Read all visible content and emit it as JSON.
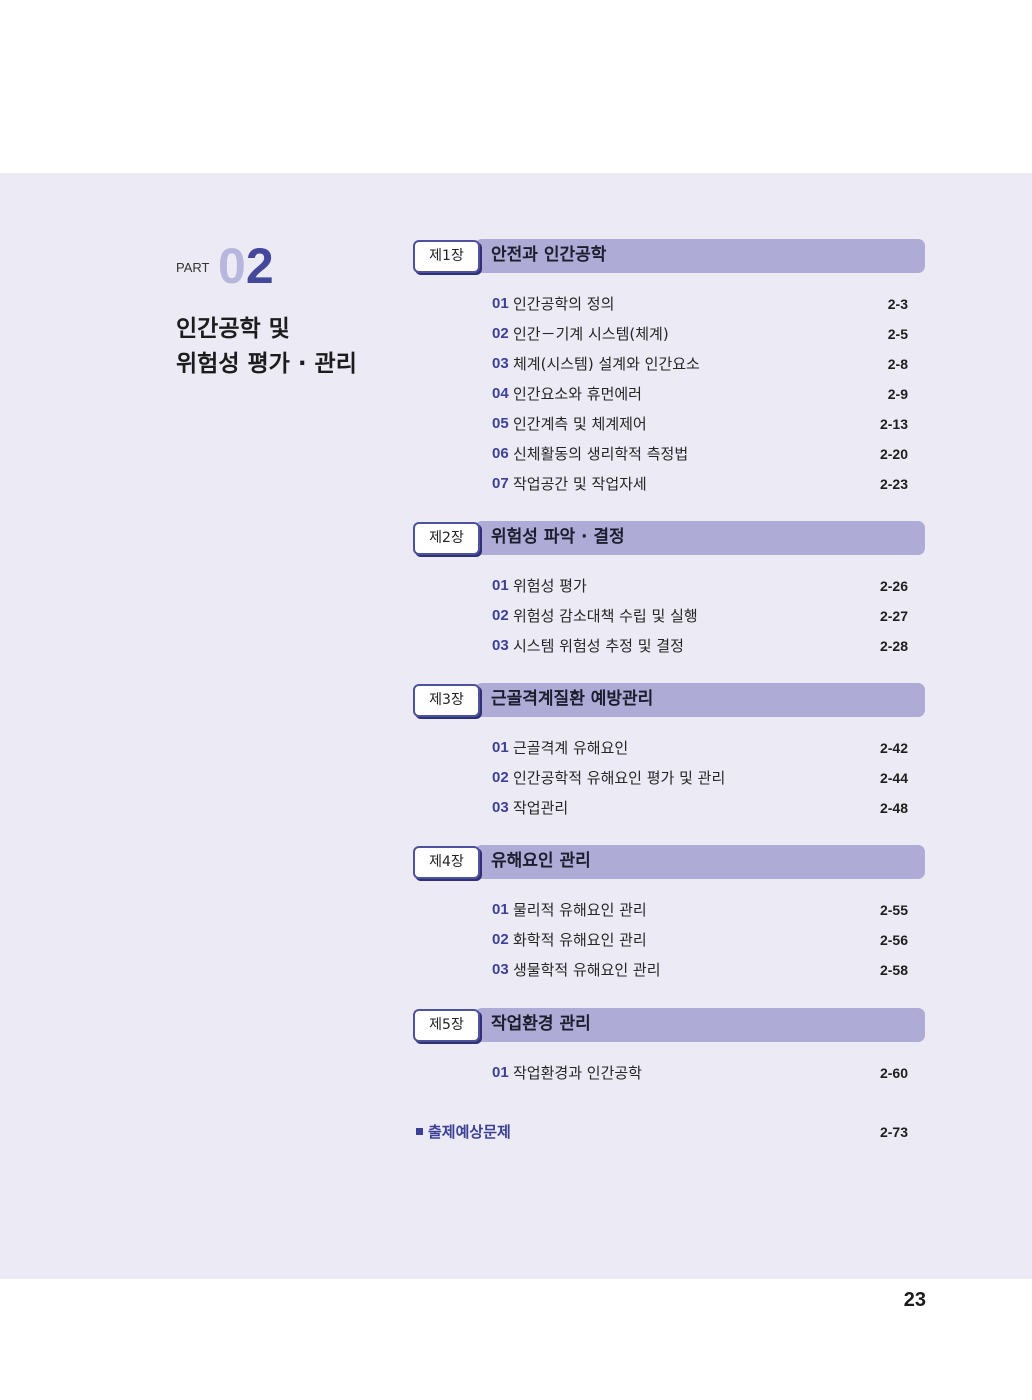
{
  "part": {
    "label": "PART",
    "number_first": "0",
    "number_second": "2",
    "title_line1": "인간공학 및",
    "title_line2": "위험성 평가 · 관리"
  },
  "chapters": [
    {
      "badge": "제1장",
      "title": "안전과 인간공학",
      "items": [
        {
          "num": "01",
          "text": "인간공학의 정의",
          "page": "2-3"
        },
        {
          "num": "02",
          "text": "인간－기계 시스템(체계)",
          "page": "2-5"
        },
        {
          "num": "03",
          "text": "체계(시스템) 설계와 인간요소",
          "page": "2-8"
        },
        {
          "num": "04",
          "text": "인간요소와 휴먼에러",
          "page": "2-9"
        },
        {
          "num": "05",
          "text": "인간계측 및 체계제어",
          "page": "2-13"
        },
        {
          "num": "06",
          "text": "신체활동의 생리학적 측정법",
          "page": "2-20"
        },
        {
          "num": "07",
          "text": "작업공간 및 작업자세",
          "page": "2-23"
        }
      ]
    },
    {
      "badge": "제2장",
      "title": "위험성 파악 · 결정",
      "items": [
        {
          "num": "01",
          "text": "위험성 평가",
          "page": "2-26"
        },
        {
          "num": "02",
          "text": "위험성 감소대책 수립 및 실행",
          "page": "2-27"
        },
        {
          "num": "03",
          "text": "시스템 위험성 추정 및 결정",
          "page": "2-28"
        }
      ]
    },
    {
      "badge": "제3장",
      "title": "근골격계질환 예방관리",
      "items": [
        {
          "num": "01",
          "text": "근골격계 유해요인",
          "page": "2-42"
        },
        {
          "num": "02",
          "text": "인간공학적 유해요인 평가 및 관리",
          "page": "2-44"
        },
        {
          "num": "03",
          "text": "작업관리",
          "page": "2-48"
        }
      ]
    },
    {
      "badge": "제4장",
      "title": "유해요인 관리",
      "items": [
        {
          "num": "01",
          "text": "물리적 유해요인 관리",
          "page": "2-55"
        },
        {
          "num": "02",
          "text": "화학적 유해요인 관리",
          "page": "2-56"
        },
        {
          "num": "03",
          "text": "생물학적 유해요인 관리",
          "page": "2-58"
        }
      ]
    },
    {
      "badge": "제5장",
      "title": "작업환경 관리",
      "items": [
        {
          "num": "01",
          "text": "작업환경과 인간공학",
          "page": "2-60"
        }
      ]
    }
  ],
  "extra": {
    "label": "출제예상문제",
    "page": "2-73"
  },
  "page_number": "23",
  "colors": {
    "panel_bg": "#eceaf4",
    "chapter_bar": "#aeabd6",
    "accent": "#3d4196"
  }
}
